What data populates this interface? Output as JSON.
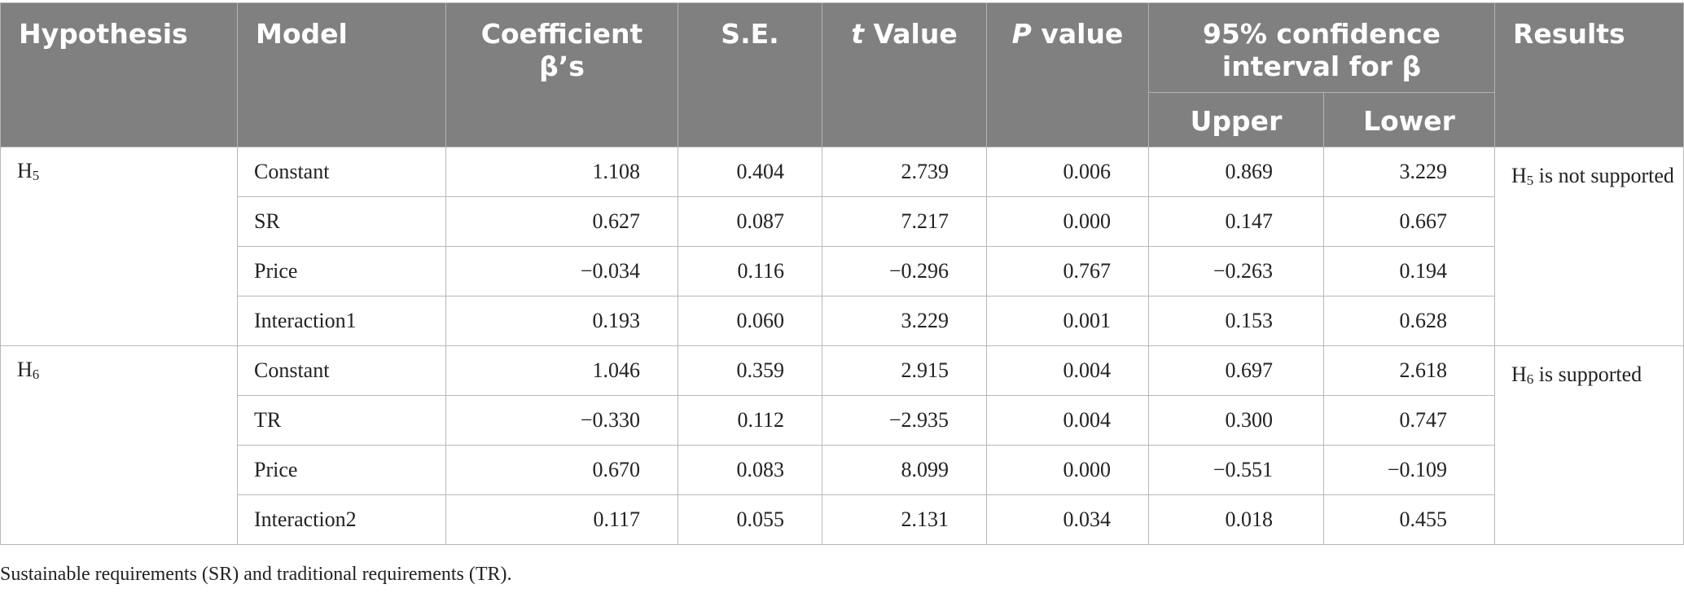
{
  "headers": {
    "hypothesis": "Hypothesis",
    "model": "Model",
    "coefficient_line1": "Coefficient",
    "coefficient_line2": "β’s",
    "se": "S.E.",
    "t_italic": "t",
    "t_rest": " Value",
    "p_italic": "P",
    "p_rest": " value",
    "ci_line1": "95% confidence",
    "ci_line2": "interval for β",
    "upper": "Upper",
    "lower": "Lower",
    "results": "Results"
  },
  "groups": [
    {
      "hyp_letter": "H",
      "hyp_sub": "5",
      "result_letter": "H",
      "result_sub": "5",
      "result_text": " is not supported",
      "rows": [
        {
          "model": "Constant",
          "coef": "1.108",
          "se": "0.404",
          "t": "2.739",
          "p": "0.006",
          "upper": "0.869",
          "lower": "3.229"
        },
        {
          "model": "SR",
          "coef": "0.627",
          "se": "0.087",
          "t": "7.217",
          "p": "0.000",
          "upper": "0.147",
          "lower": "0.667"
        },
        {
          "model": "Price",
          "coef": "−0.034",
          "se": "0.116",
          "t": "−0.296",
          "p": "0.767",
          "upper": "−0.263",
          "lower": "0.194"
        },
        {
          "model": "Interaction1",
          "coef": "0.193",
          "se": "0.060",
          "t": "3.229",
          "p": "0.001",
          "upper": "0.153",
          "lower": "0.628"
        }
      ]
    },
    {
      "hyp_letter": "H",
      "hyp_sub": "6",
      "result_letter": "H",
      "result_sub": "6",
      "result_text": " is supported",
      "rows": [
        {
          "model": "Constant",
          "coef": "1.046",
          "se": "0.359",
          "t": "2.915",
          "p": "0.004",
          "upper": "0.697",
          "lower": "2.618"
        },
        {
          "model": "TR",
          "coef": "−0.330",
          "se": "0.112",
          "t": "−2.935",
          "p": "0.004",
          "upper": "0.300",
          "lower": "0.747"
        },
        {
          "model": "Price",
          "coef": "0.670",
          "se": "0.083",
          "t": "8.099",
          "p": "0.000",
          "upper": "−0.551",
          "lower": "−0.109"
        },
        {
          "model": "Interaction2",
          "coef": "0.117",
          "se": "0.055",
          "t": "2.131",
          "p": "0.034",
          "upper": "0.018",
          "lower": "0.455"
        }
      ]
    }
  ],
  "footnote": "Sustainable requirements (SR) and traditional requirements (TR)."
}
